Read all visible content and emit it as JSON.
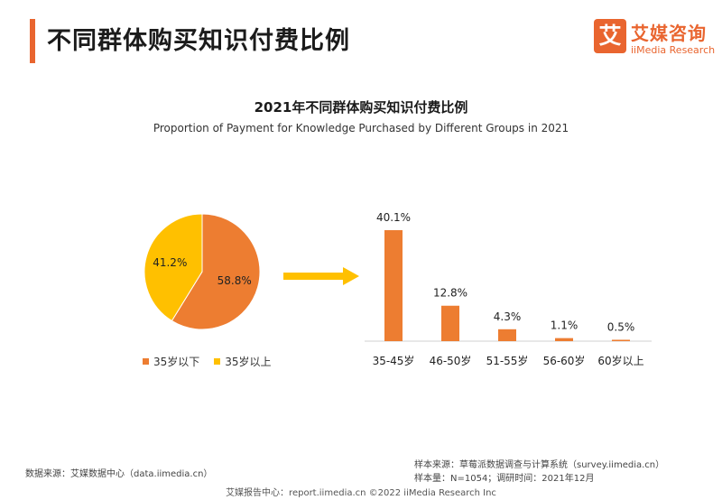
{
  "header": {
    "title": "不同群体购买知识付费比例",
    "accent_color": "#e9652f"
  },
  "logo": {
    "glyph": "艾",
    "name_cn": "艾媒咨询",
    "name_en": "iiMedia Research"
  },
  "chart_data": [
    {
      "type": "pie",
      "title": "2021年不同群体购买知识付费比例",
      "subtitle": "Proportion of Payment for Knowledge Purchased by Different Groups in 2021",
      "slices": [
        {
          "name": "35岁以下",
          "value": 58.8,
          "label": "58.8%",
          "color": "#ed7d31"
        },
        {
          "name": "35岁以上",
          "value": 41.2,
          "label": "41.2%",
          "color": "#ffc000"
        }
      ],
      "legend_position": "bottom"
    },
    {
      "type": "bar",
      "categories": [
        "35-45岁",
        "46-50岁",
        "51-55岁",
        "56-60岁",
        "60岁以上"
      ],
      "values": [
        40.1,
        12.8,
        4.3,
        1.1,
        0.5
      ],
      "data_labels": [
        "40.1%",
        "12.8%",
        "4.3%",
        "1.1%",
        "0.5%"
      ],
      "color": "#ed7d31",
      "ylim": [
        0,
        45
      ],
      "grid": false
    }
  ],
  "footer": {
    "source_left": "数据来源：艾媒数据中心（data.iimedia.cn）",
    "sample_source": "样本来源：草莓派数据调查与计算系统（survey.iimedia.cn）",
    "sample_size": "样本量：N=1054；调研时间：2021年12月",
    "bottom_line": "艾媒报告中心：report.iimedia.cn  ©2022  iiMedia Research  Inc"
  }
}
